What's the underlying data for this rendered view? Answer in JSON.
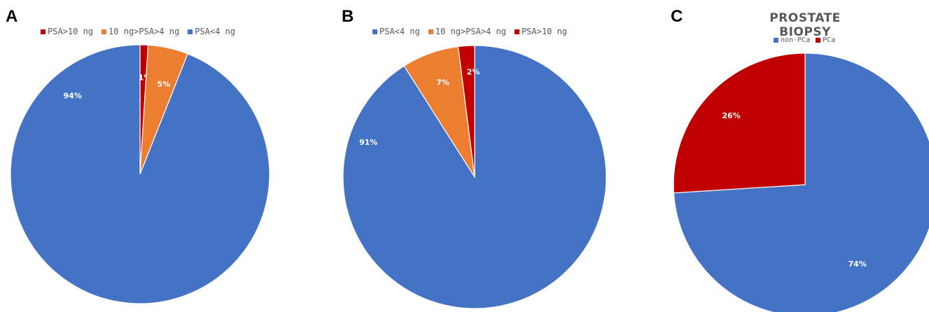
{
  "chart_data": [
    {
      "type": "pie",
      "panel": "A",
      "title": "",
      "legend_position": "top",
      "slices": [
        {
          "label": "PSA>10 ng",
          "value": 1,
          "data_label": "1%",
          "color": "#c00000"
        },
        {
          "label": "10 ng>PSA>4 ng",
          "value": 5,
          "data_label": "5%",
          "color": "#ed7d31"
        },
        {
          "label": "PSA<4 ng",
          "value": 94,
          "data_label": "94%",
          "color": "#4472c4"
        }
      ]
    },
    {
      "type": "pie",
      "panel": "B",
      "title": "",
      "legend_position": "top",
      "slices": [
        {
          "label": "PSA<4 ng",
          "value": 91,
          "data_label": "91%",
          "color": "#4472c4"
        },
        {
          "label": "10 ng>PSA>4 ng",
          "value": 7,
          "data_label": "7%",
          "color": "#ed7d31"
        },
        {
          "label": "PSA>10 ng",
          "value": 2,
          "data_label": "2%",
          "color": "#c00000"
        }
      ]
    },
    {
      "type": "pie",
      "panel": "C",
      "title": "PROSTATE BIOPSY",
      "legend_position": "top",
      "slices": [
        {
          "label": "non-PCa",
          "value": 74,
          "data_label": "74%",
          "color": "#4472c4"
        },
        {
          "label": "PCa",
          "value": 26,
          "data_label": "26%",
          "color": "#c00000"
        }
      ]
    }
  ]
}
